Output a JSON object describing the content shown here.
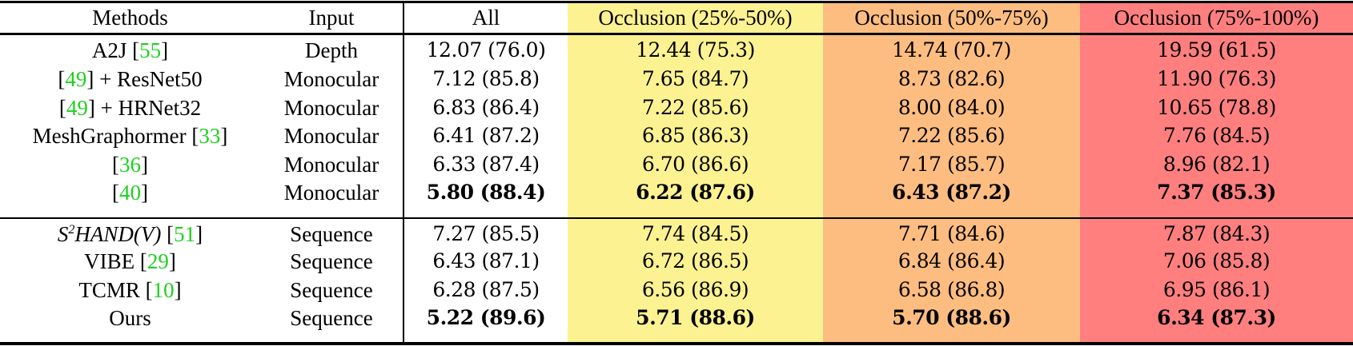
{
  "table": {
    "colors": {
      "occl_25_50": "#fdf291",
      "occl_50_75": "#fdbd80",
      "occl_75_100": "#ff7f7f",
      "citation": "#1fd01f"
    },
    "headers": [
      "Methods",
      "Input",
      "All",
      "Occlusion (25%-50%)",
      "Occlusion (50%-75%)",
      "Occlusion (75%-100%)"
    ],
    "rows": [
      {
        "method_pre": "A2J [",
        "cite": "55",
        "method_post": "]",
        "input": "Depth",
        "all": "12.07 (76.0)",
        "o1": "12.44 (75.3)",
        "o2": "14.74 (70.7)",
        "o3": "19.59 (61.5)",
        "bold": false
      },
      {
        "method_pre": "[",
        "cite": "49",
        "method_post": "] + ResNet50",
        "input": "Monocular",
        "all": "7.12 (85.8)",
        "o1": "7.65 (84.7)",
        "o2": "8.73 (82.6)",
        "o3": "11.90 (76.3)",
        "bold": false
      },
      {
        "method_pre": "[",
        "cite": "49",
        "method_post": "] + HRNet32",
        "input": "Monocular",
        "all": "6.83 (86.4)",
        "o1": "7.22 (85.6)",
        "o2": "8.00 (84.0)",
        "o3": "10.65 (78.8)",
        "bold": false
      },
      {
        "method_pre": "MeshGraphormer [",
        "cite": "33",
        "method_post": "]",
        "input": "Monocular",
        "all": "6.41 (87.2)",
        "o1": "6.85 (86.3)",
        "o2": "7.22 (85.6)",
        "o3": "7.76 (84.5)",
        "bold": false
      },
      {
        "method_pre": "[",
        "cite": "36",
        "method_post": "]",
        "input": "Monocular",
        "all": "6.33 (87.4)",
        "o1": "6.70 (86.6)",
        "o2": "7.17 (85.7)",
        "o3": "8.96 (82.1)",
        "bold": false
      },
      {
        "method_pre": "[",
        "cite": "40",
        "method_post": "]",
        "input": "Monocular",
        "all": "5.80 (88.4)",
        "o1": "6.22 (87.6)",
        "o2": "6.43 (87.2)",
        "o3": "7.37 (85.3)",
        "bold": true
      },
      {
        "method_math_base": "S",
        "method_math_sup": "2",
        "method_math_rest": "HAND(V)",
        "method_pre": " [",
        "cite": "51",
        "method_post": "]",
        "input": "Sequence",
        "all": "7.27 (85.5)",
        "o1": "7.74 (84.5)",
        "o2": "7.71 (84.6)",
        "o3": "7.87 (84.3)",
        "bold": false
      },
      {
        "method_pre": "VIBE [",
        "cite": "29",
        "method_post": "]",
        "input": "Sequence",
        "all": "6.43 (87.1)",
        "o1": "6.72 (86.5)",
        "o2": "6.84 (86.4)",
        "o3": "7.06 (85.8)",
        "bold": false
      },
      {
        "method_pre": "TCMR [",
        "cite": "10",
        "method_post": "]",
        "input": "Sequence",
        "all": "6.28 (87.5)",
        "o1": "6.56 (86.9)",
        "o2": "6.58 (86.8)",
        "o3": "6.95 (86.1)",
        "bold": false
      },
      {
        "method_pre": "Ours",
        "cite": "",
        "method_post": "",
        "input": "Sequence",
        "all": "5.22 (89.6)",
        "o1": "5.71 (88.6)",
        "o2": "5.70 (88.6)",
        "o3": "6.34 (87.3)",
        "bold": true
      }
    ]
  }
}
